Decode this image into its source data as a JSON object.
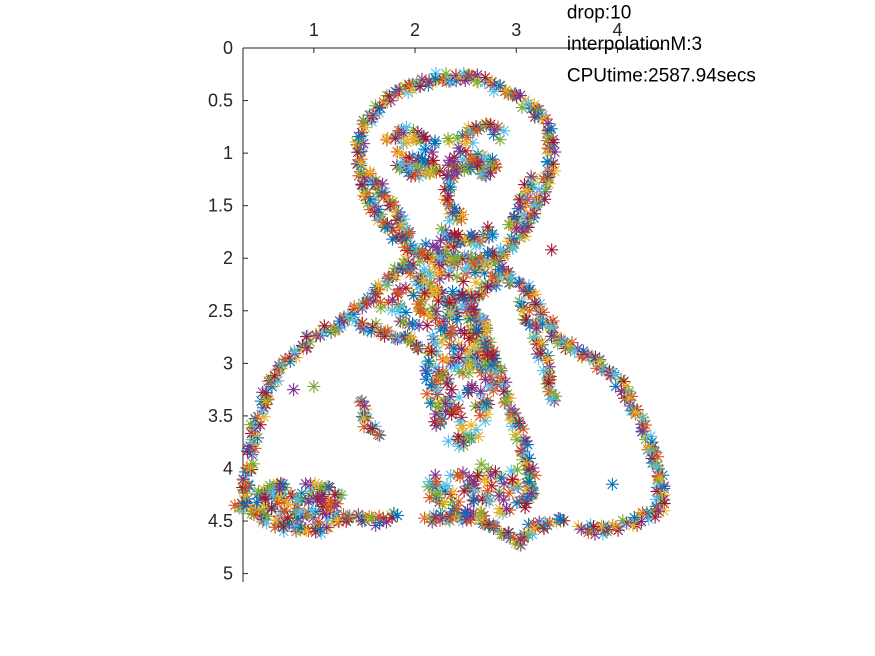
{
  "chart_data": {
    "type": "scatter",
    "marker": "asterisk",
    "x_axis_location": "top",
    "y_axis_direction": "reversed",
    "xlim": [
      0.3,
      4.45
    ],
    "ylim": [
      0,
      5.08
    ],
    "x_ticks": [
      "1",
      "2",
      "3",
      "4"
    ],
    "y_ticks": [
      "0",
      "0.5",
      "1",
      "1.5",
      "2",
      "2.5",
      "3",
      "3.5",
      "4",
      "4.5",
      "5"
    ],
    "grid": false,
    "palette": [
      "#0072BD",
      "#D95319",
      "#EDB120",
      "#7E2F8E",
      "#77AC30",
      "#4DBEEE",
      "#A2142F"
    ],
    "annotations": [
      {
        "text": "drop:10",
        "x": 3.5,
        "y": -0.28
      },
      {
        "text": "interpolationM:3",
        "x": 3.5,
        "y": 0.02
      },
      {
        "text": "CPUtime:2587.94secs",
        "x": 3.5,
        "y": 0.32
      }
    ],
    "outline_paths": [
      {
        "name": "head-outline",
        "closed": true,
        "points": [
          [
            2.35,
            2.0
          ],
          [
            2.0,
            1.95
          ],
          [
            1.75,
            1.75
          ],
          [
            1.55,
            1.45
          ],
          [
            1.45,
            1.1
          ],
          [
            1.45,
            0.85
          ],
          [
            1.6,
            0.6
          ],
          [
            1.85,
            0.4
          ],
          [
            2.2,
            0.28
          ],
          [
            2.6,
            0.28
          ],
          [
            2.95,
            0.42
          ],
          [
            3.2,
            0.6
          ],
          [
            3.35,
            0.85
          ],
          [
            3.35,
            1.2
          ],
          [
            3.2,
            1.5
          ],
          [
            3.05,
            1.75
          ],
          [
            2.9,
            1.95
          ],
          [
            2.65,
            2.05
          ]
        ]
      },
      {
        "name": "shoulders-outline",
        "closed": false,
        "points": [
          [
            0.3,
            4.35
          ],
          [
            0.35,
            4.0
          ],
          [
            0.42,
            3.6
          ],
          [
            0.55,
            3.2
          ],
          [
            0.75,
            2.95
          ],
          [
            1.0,
            2.75
          ],
          [
            1.3,
            2.6
          ],
          [
            1.55,
            2.4
          ],
          [
            1.75,
            2.2
          ],
          [
            1.9,
            2.05
          ],
          [
            2.05,
            2.2
          ],
          [
            2.3,
            2.4
          ],
          [
            2.6,
            2.35
          ],
          [
            2.9,
            2.15
          ],
          [
            3.1,
            2.3
          ],
          [
            3.3,
            2.6
          ],
          [
            3.45,
            2.8
          ],
          [
            3.75,
            2.95
          ],
          [
            4.0,
            3.15
          ],
          [
            4.2,
            3.45
          ],
          [
            4.32,
            3.8
          ],
          [
            4.42,
            4.1
          ],
          [
            4.42,
            4.4
          ],
          [
            4.2,
            4.5
          ],
          [
            3.85,
            4.6
          ],
          [
            3.6,
            4.55
          ]
        ]
      },
      {
        "name": "bottom-left",
        "closed": false,
        "points": [
          [
            0.3,
            4.35
          ],
          [
            0.45,
            4.45
          ],
          [
            0.7,
            4.55
          ],
          [
            1.0,
            4.6
          ],
          [
            1.25,
            4.45
          ],
          [
            1.6,
            4.5
          ],
          [
            1.85,
            4.45
          ]
        ]
      },
      {
        "name": "bottom-center",
        "closed": false,
        "points": [
          [
            2.1,
            4.5
          ],
          [
            2.4,
            4.45
          ],
          [
            2.7,
            4.5
          ],
          [
            3.0,
            4.7
          ],
          [
            3.2,
            4.55
          ],
          [
            3.5,
            4.5
          ]
        ]
      },
      {
        "name": "left-eyebrow",
        "closed": false,
        "points": [
          [
            1.75,
            0.85
          ],
          [
            1.95,
            0.8
          ],
          [
            2.15,
            0.9
          ]
        ]
      },
      {
        "name": "right-eyebrow",
        "closed": false,
        "points": [
          [
            2.5,
            0.8
          ],
          [
            2.7,
            0.75
          ],
          [
            2.9,
            0.85
          ]
        ]
      },
      {
        "name": "left-eye",
        "closed": true,
        "points": [
          [
            1.85,
            1.1
          ],
          [
            2.0,
            1.05
          ],
          [
            2.12,
            1.12
          ],
          [
            2.0,
            1.2
          ]
        ]
      },
      {
        "name": "right-eye",
        "closed": true,
        "points": [
          [
            2.5,
            1.1
          ],
          [
            2.65,
            1.05
          ],
          [
            2.8,
            1.12
          ],
          [
            2.65,
            1.2
          ]
        ]
      },
      {
        "name": "nose",
        "closed": false,
        "points": [
          [
            2.35,
            1.15
          ],
          [
            2.32,
            1.45
          ],
          [
            2.38,
            1.6
          ],
          [
            2.5,
            1.62
          ]
        ]
      },
      {
        "name": "mouth",
        "closed": false,
        "points": [
          [
            2.3,
            1.75
          ],
          [
            2.45,
            1.85
          ],
          [
            2.65,
            1.8
          ],
          [
            2.8,
            1.72
          ]
        ]
      },
      {
        "name": "hair-left",
        "closed": false,
        "points": [
          [
            1.55,
            1.2
          ],
          [
            1.7,
            1.4
          ],
          [
            1.85,
            1.6
          ],
          [
            1.95,
            1.85
          ]
        ]
      },
      {
        "name": "hair-right",
        "closed": false,
        "points": [
          [
            3.15,
            1.25
          ],
          [
            3.05,
            1.5
          ],
          [
            2.95,
            1.75
          ]
        ]
      },
      {
        "name": "collar-left",
        "closed": false,
        "points": [
          [
            1.45,
            2.6
          ],
          [
            1.65,
            2.7
          ],
          [
            1.9,
            2.75
          ],
          [
            2.15,
            2.9
          ]
        ]
      },
      {
        "name": "collar-right",
        "closed": false,
        "points": [
          [
            3.05,
            2.45
          ],
          [
            3.2,
            2.75
          ],
          [
            3.3,
            3.05
          ],
          [
            3.4,
            3.4
          ]
        ]
      },
      {
        "name": "lapel",
        "closed": false,
        "points": [
          [
            2.55,
            2.4
          ],
          [
            2.75,
            2.9
          ],
          [
            2.9,
            3.3
          ],
          [
            3.05,
            3.7
          ],
          [
            3.15,
            4.1
          ],
          [
            3.1,
            4.4
          ]
        ]
      },
      {
        "name": "arm-mark",
        "closed": false,
        "points": [
          [
            1.45,
            3.4
          ],
          [
            1.55,
            3.6
          ],
          [
            1.65,
            3.7
          ]
        ]
      }
    ],
    "clusters": [
      {
        "name": "chest-center",
        "cx": 2.45,
        "cy": 3.1,
        "rx": 0.35,
        "ry": 0.7,
        "count": 190
      },
      {
        "name": "lower-left",
        "cx": 0.85,
        "cy": 4.3,
        "rx": 0.45,
        "ry": 0.18,
        "count": 110
      },
      {
        "name": "lower-center",
        "cx": 2.65,
        "cy": 4.2,
        "rx": 0.55,
        "ry": 0.25,
        "count": 90
      },
      {
        "name": "eyes-region",
        "cx": 2.25,
        "cy": 1.0,
        "rx": 0.45,
        "ry": 0.2,
        "count": 40
      },
      {
        "name": "beard-region",
        "cx": 2.45,
        "cy": 2.0,
        "rx": 0.45,
        "ry": 0.25,
        "count": 50
      },
      {
        "name": "neck-region",
        "cx": 2.1,
        "cy": 2.45,
        "rx": 0.45,
        "ry": 0.2,
        "count": 60
      }
    ],
    "isolated_points": [
      [
        0.8,
        3.25
      ],
      [
        1.0,
        3.22
      ],
      [
        2.25,
        2.0
      ],
      [
        3.35,
        1.92
      ],
      [
        3.95,
        4.15
      ],
      [
        0.22,
        4.35
      ]
    ]
  }
}
